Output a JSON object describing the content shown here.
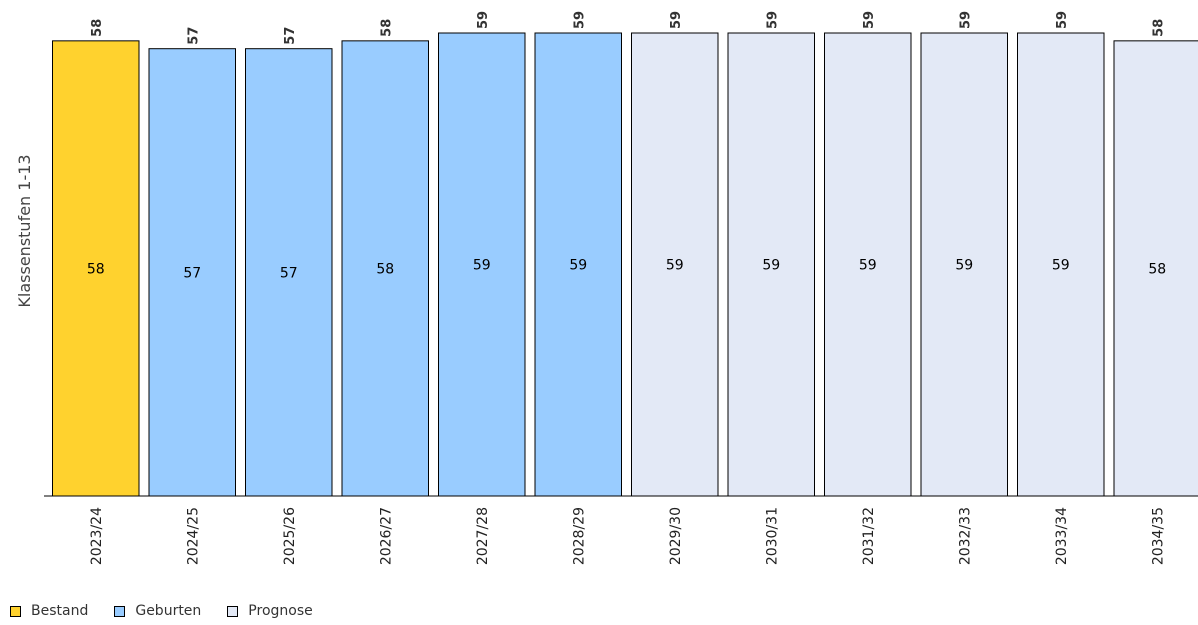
{
  "chart_data": {
    "type": "bar",
    "ylabel": "Klassenstufen 1-13",
    "ylim": [
      0,
      59
    ],
    "grid": false,
    "legend_placement": "bottom-left",
    "categories": [
      "2023/24",
      "2024/25",
      "2025/26",
      "2026/27",
      "2027/28",
      "2028/29",
      "2029/30",
      "2030/31",
      "2031/32",
      "2032/33",
      "2033/34",
      "2034/35"
    ],
    "values": [
      58,
      57,
      57,
      58,
      59,
      59,
      59,
      59,
      59,
      59,
      59,
      58
    ],
    "value_labels": [
      "58",
      "57",
      "57",
      "58",
      "59",
      "59",
      "59",
      "59",
      "59",
      "59",
      "59",
      "58"
    ],
    "bar_groups": [
      "Bestand",
      "Geburten",
      "Geburten",
      "Geburten",
      "Geburten",
      "Geburten",
      "Prognose",
      "Prognose",
      "Prognose",
      "Prognose",
      "Prognose",
      "Prognose"
    ],
    "series": [
      {
        "name": "Bestand",
        "color": "#FFD22E"
      },
      {
        "name": "Geburten",
        "color": "#99CCFF"
      },
      {
        "name": "Prognose",
        "color": "#E3E9F6"
      }
    ]
  }
}
